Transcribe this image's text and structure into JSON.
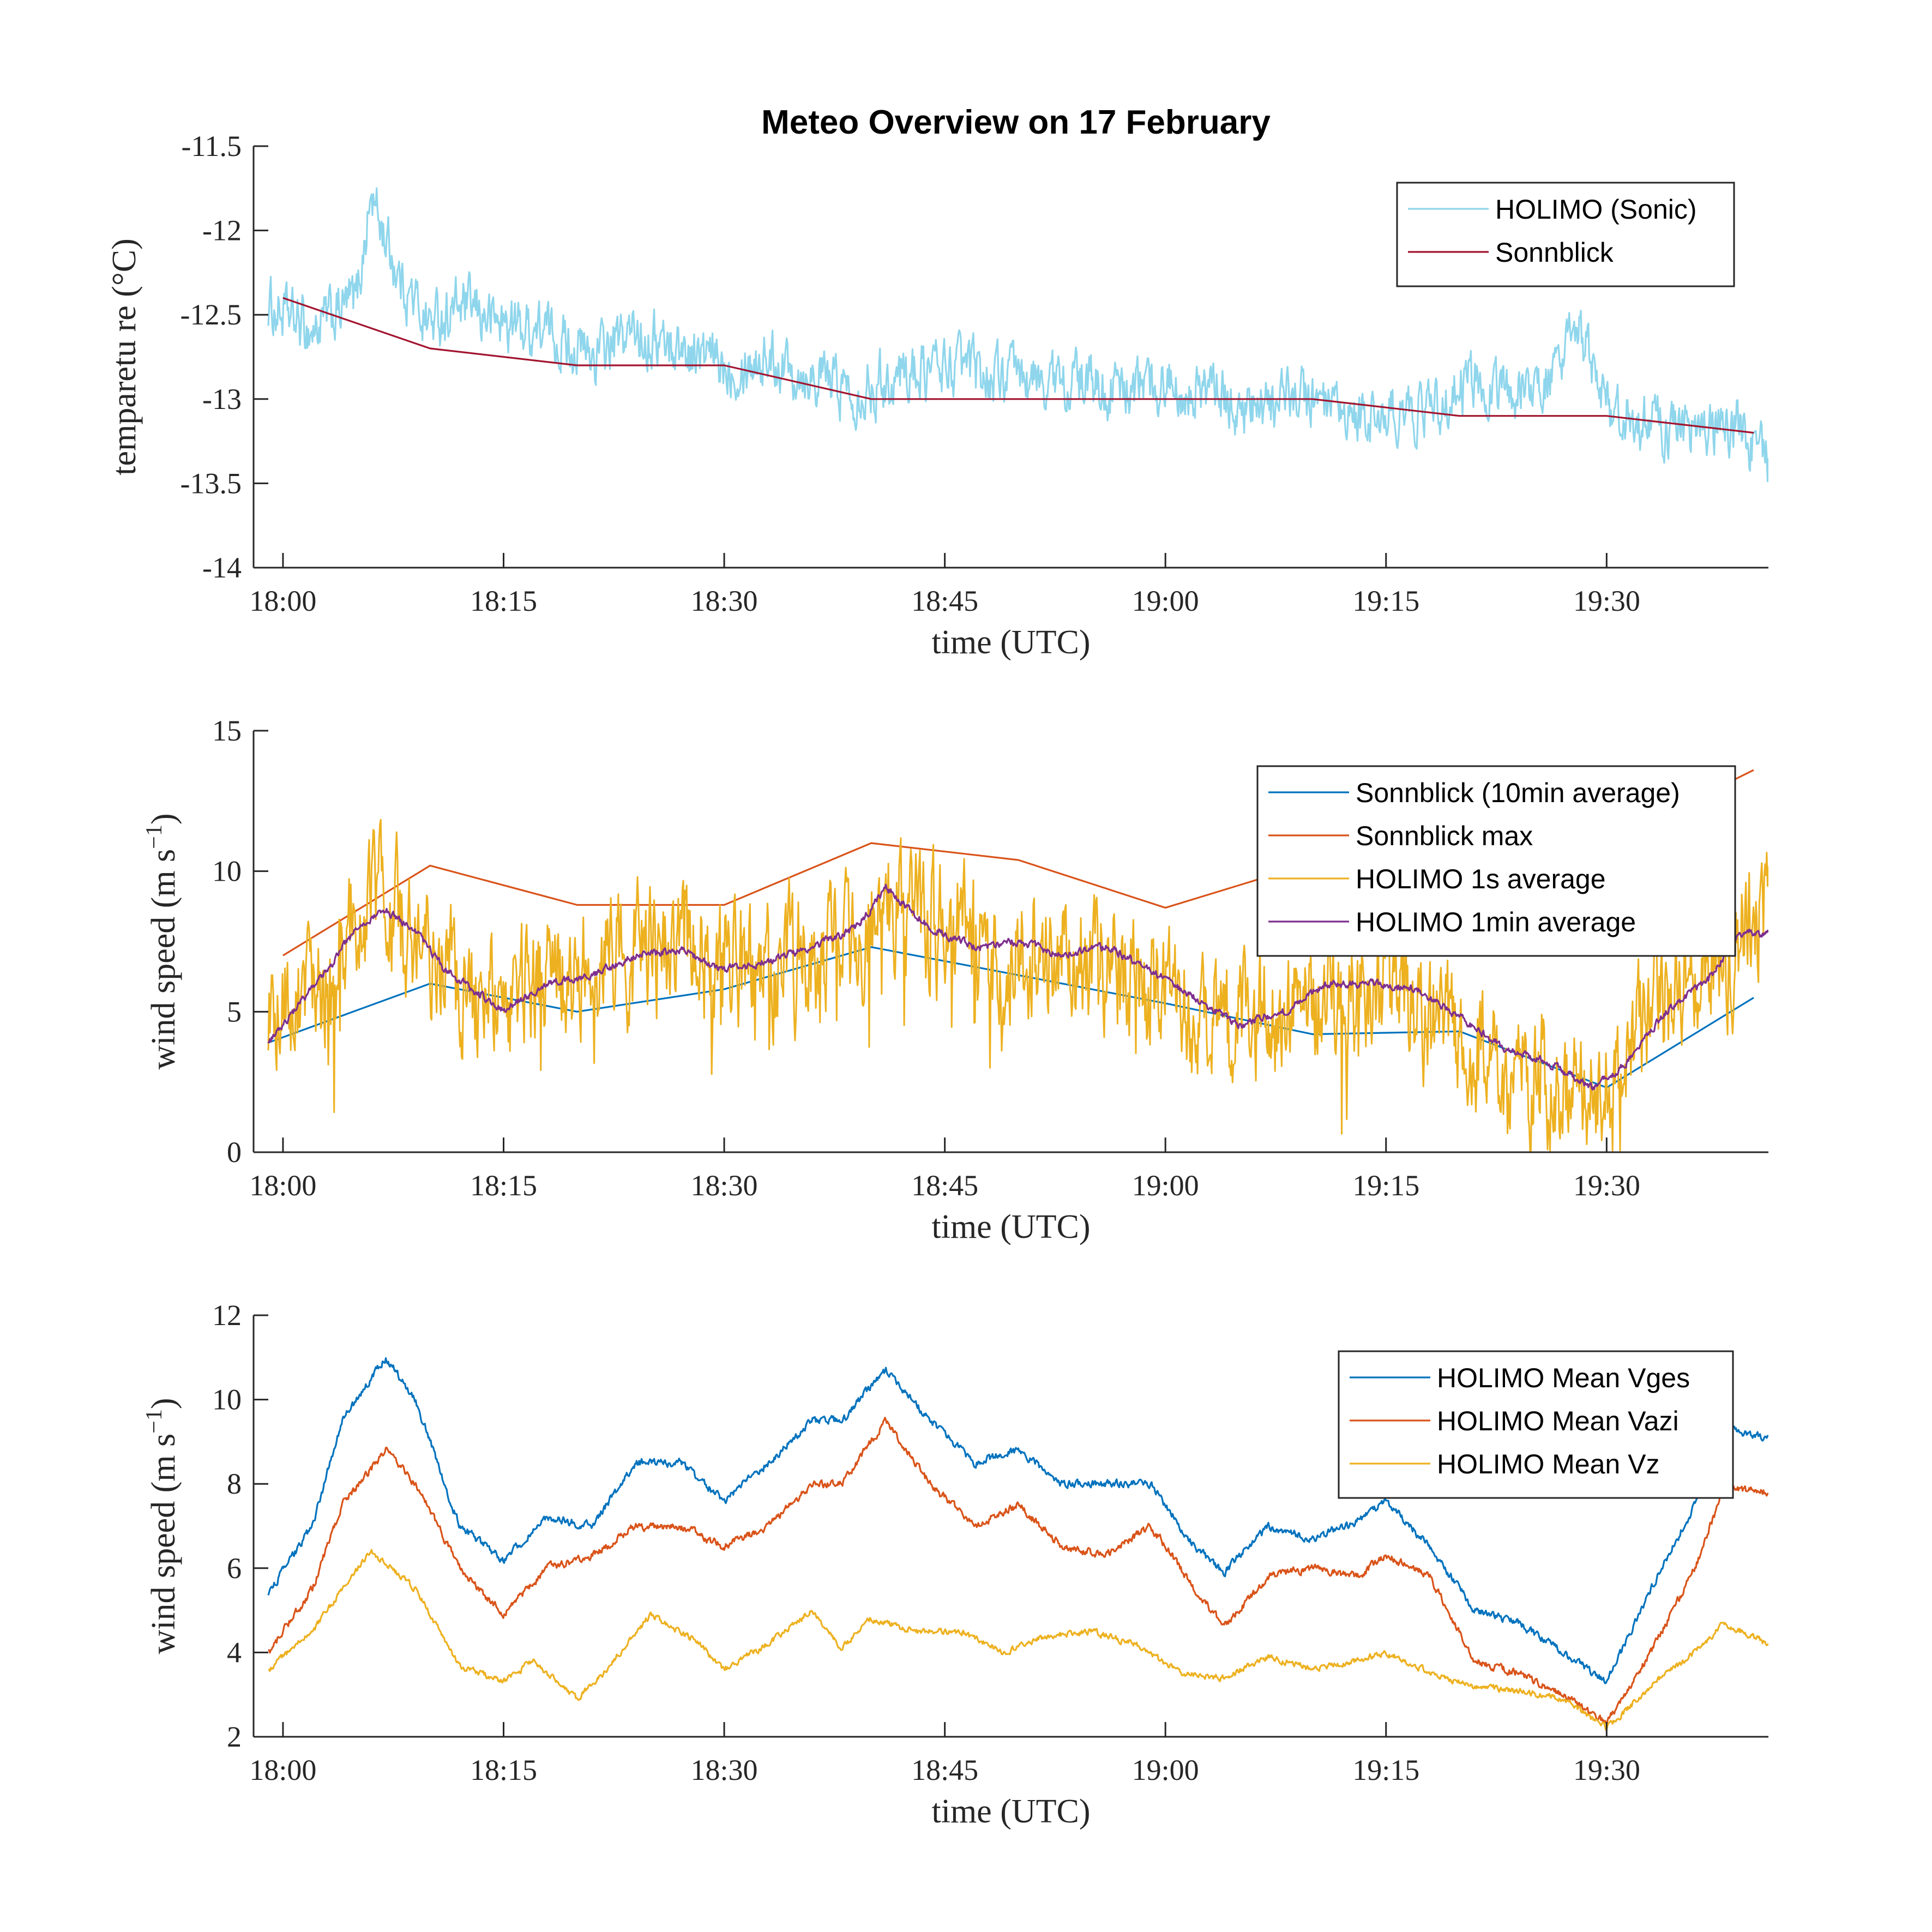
{
  "figure": {
    "title": "Meteo Overview on 17 February"
  },
  "chart_data": [
    {
      "type": "line",
      "title": "Meteo Overview on 17 February",
      "xlabel": "time (UTC)",
      "ylabel": "temparetu re (°C)",
      "ylabel_text": "temparetu re (°C)",
      "ylim": [
        -14,
        -11.5
      ],
      "xlim": [
        "17:58",
        "19:41"
      ],
      "x_ticks": [
        "18:00",
        "18:15",
        "18:30",
        "18:45",
        "19:00",
        "19:15",
        "19:30"
      ],
      "y_ticks": [
        "-14",
        "-13.5",
        "-13",
        "-12.5",
        "-12",
        "-11.5"
      ],
      "y_tick_values": [
        -14,
        -13.5,
        -13,
        -12.5,
        -12,
        -11.5
      ],
      "legend_position": "top-right",
      "series": [
        {
          "name": "HOLIMO (Sonic)",
          "color": "#8fd6ec",
          "noise": 0.18,
          "x": [
            "17:59",
            "18:02",
            "18:05",
            "18:06",
            "18:08",
            "18:10",
            "18:12",
            "18:15",
            "18:18",
            "18:21",
            "18:24",
            "18:27",
            "18:30",
            "18:33",
            "18:36",
            "18:39",
            "18:42",
            "18:45",
            "18:48",
            "18:51",
            "18:54",
            "18:57",
            "19:00",
            "19:03",
            "19:06",
            "19:09",
            "19:12",
            "19:15",
            "19:18",
            "19:21",
            "19:24",
            "19:27",
            "19:28",
            "19:30",
            "19:33",
            "19:36",
            "19:39",
            "19:41"
          ],
          "values": [
            -12.45,
            -12.6,
            -12.4,
            -11.8,
            -12.3,
            -12.55,
            -12.45,
            -12.55,
            -12.6,
            -12.75,
            -12.6,
            -12.7,
            -12.8,
            -12.75,
            -12.85,
            -12.95,
            -12.85,
            -12.8,
            -12.85,
            -12.9,
            -12.9,
            -12.95,
            -12.9,
            -12.95,
            -13.1,
            -12.95,
            -13.15,
            -13.1,
            -13.05,
            -12.9,
            -12.95,
            -12.85,
            -12.55,
            -13.05,
            -13.15,
            -13.2,
            -13.15,
            -13.4
          ]
        },
        {
          "name": "Sonnblick",
          "color": "#a2142f",
          "noise": 0,
          "x": [
            "18:00",
            "18:10",
            "18:20",
            "18:30",
            "18:40",
            "18:50",
            "19:00",
            "19:10",
            "19:20",
            "19:30",
            "19:40"
          ],
          "values": [
            -12.4,
            -12.7,
            -12.8,
            -12.8,
            -13.0,
            -13.0,
            -13.0,
            -13.0,
            -13.1,
            -13.1,
            -13.2
          ]
        }
      ]
    },
    {
      "type": "line",
      "xlabel": "time (UTC)",
      "ylabel": "wind speed (m s^-1)",
      "ylabel_text": "wind speed (m s",
      "ylabel_exp": "−1",
      "ylim": [
        0,
        15
      ],
      "xlim": [
        "17:58",
        "19:41"
      ],
      "x_ticks": [
        "18:00",
        "18:15",
        "18:30",
        "18:45",
        "19:00",
        "19:15",
        "19:30"
      ],
      "y_ticks": [
        "0",
        "5",
        "10",
        "15"
      ],
      "y_tick_values": [
        0,
        5,
        10,
        15
      ],
      "legend_position": "top-right",
      "series": [
        {
          "name": "Sonnblick (10min average)",
          "color": "#0072bd",
          "noise": 0,
          "x": [
            "17:59",
            "18:10",
            "18:20",
            "18:30",
            "18:40",
            "18:50",
            "19:00",
            "19:10",
            "19:20",
            "19:30",
            "19:40"
          ],
          "values": [
            3.9,
            6.0,
            5.0,
            5.8,
            7.3,
            6.3,
            5.3,
            4.2,
            4.3,
            2.3,
            5.5
          ]
        },
        {
          "name": "Sonnblick max",
          "color": "#d95319",
          "noise": 0,
          "x": [
            "18:00",
            "18:10",
            "18:20",
            "18:30",
            "18:40",
            "18:50",
            "19:00",
            "19:10",
            "19:20",
            "19:30",
            "19:40"
          ],
          "values": [
            7.0,
            10.2,
            8.8,
            8.8,
            11.0,
            10.4,
            8.7,
            10.3,
            10.2,
            11.0,
            13.6
          ]
        },
        {
          "name": "HOLIMO 1s average",
          "color": "#edb120",
          "noise": 2.4,
          "x": [
            "17:59",
            "18:03",
            "18:05",
            "18:07",
            "18:10",
            "18:12",
            "18:15",
            "18:18",
            "18:21",
            "18:24",
            "18:27",
            "18:30",
            "18:33",
            "18:36",
            "18:39",
            "18:41",
            "18:44",
            "18:47",
            "18:50",
            "18:53",
            "18:56",
            "18:59",
            "19:02",
            "19:05",
            "19:08",
            "19:11",
            "19:14",
            "19:17",
            "19:20",
            "19:23",
            "19:26",
            "19:29",
            "19:31",
            "19:34",
            "19:37",
            "19:39",
            "19:41"
          ],
          "values": [
            4.5,
            6.5,
            8.5,
            8.5,
            7.5,
            6.0,
            5.0,
            6.5,
            6.5,
            7.0,
            7.0,
            6.5,
            6.5,
            7.0,
            7.5,
            9.0,
            8.0,
            7.5,
            7.0,
            7.0,
            6.5,
            6.0,
            5.0,
            4.5,
            5.0,
            5.5,
            5.5,
            5.0,
            4.0,
            3.0,
            2.5,
            2.0,
            3.5,
            5.5,
            6.5,
            7.5,
            8.5
          ]
        },
        {
          "name": "HOLIMO 1min average",
          "color": "#7e2f8e",
          "noise": 0.15,
          "x": [
            "17:59",
            "18:03",
            "18:05",
            "18:07",
            "18:09",
            "18:11",
            "18:15",
            "18:18",
            "18:21",
            "18:24",
            "18:27",
            "18:30",
            "18:33",
            "18:36",
            "18:39",
            "18:41",
            "18:44",
            "18:47",
            "18:50",
            "18:53",
            "18:56",
            "18:59",
            "19:02",
            "19:05",
            "19:08",
            "19:11",
            "19:14",
            "19:17",
            "19:20",
            "19:23",
            "19:26",
            "19:29",
            "19:31",
            "19:34",
            "19:37",
            "19:39",
            "19:41"
          ],
          "values": [
            3.9,
            6.5,
            8.0,
            8.6,
            7.9,
            6.5,
            5.0,
            6.0,
            6.3,
            7.0,
            7.2,
            6.5,
            6.8,
            7.3,
            8.0,
            9.4,
            8.0,
            7.3,
            7.5,
            7.0,
            7.3,
            6.5,
            5.5,
            4.5,
            5.0,
            6.0,
            6.0,
            5.8,
            4.8,
            3.7,
            3.2,
            2.3,
            3.0,
            5.0,
            6.2,
            7.8,
            7.8
          ]
        }
      ]
    },
    {
      "type": "line",
      "xlabel": "time (UTC)",
      "ylabel": "wind speed (m s^-1)",
      "ylabel_text": "wind speed (m s",
      "ylabel_exp": "−1",
      "ylim": [
        2,
        12
      ],
      "xlim": [
        "17:58",
        "19:41"
      ],
      "x_ticks": [
        "18:00",
        "18:15",
        "18:30",
        "18:45",
        "19:00",
        "19:15",
        "19:30"
      ],
      "y_ticks": [
        "2",
        "4",
        "6",
        "8",
        "10",
        "12"
      ],
      "y_tick_values": [
        2,
        4,
        6,
        8,
        10,
        12
      ],
      "legend_position": "top-right",
      "series": [
        {
          "name": "HOLIMO Mean Vges",
          "color": "#0072bd",
          "noise": 0.1,
          "x": [
            "17:59",
            "18:02",
            "18:04",
            "18:07",
            "18:09",
            "18:12",
            "18:15",
            "18:18",
            "18:21",
            "18:24",
            "18:27",
            "18:30",
            "18:33",
            "18:36",
            "18:38",
            "18:41",
            "18:44",
            "18:47",
            "18:50",
            "18:53",
            "18:56",
            "18:59",
            "19:02",
            "19:04",
            "19:07",
            "19:10",
            "19:13",
            "19:15",
            "19:18",
            "19:21",
            "19:24",
            "19:27",
            "19:30",
            "19:33",
            "19:36",
            "19:38",
            "19:41"
          ],
          "values": [
            5.4,
            7.0,
            9.5,
            11.0,
            10.0,
            7.0,
            6.2,
            7.2,
            7.0,
            8.5,
            8.5,
            7.6,
            8.5,
            9.5,
            9.5,
            10.7,
            9.5,
            8.5,
            8.8,
            8.0,
            8.0,
            8.0,
            6.5,
            5.9,
            7.0,
            6.7,
            7.1,
            7.6,
            6.5,
            5.0,
            4.7,
            4.0,
            3.3,
            5.5,
            7.5,
            9.3,
            9.1
          ]
        },
        {
          "name": "HOLIMO Mean Vazi",
          "color": "#d95319",
          "noise": 0.1,
          "x": [
            "17:59",
            "18:02",
            "18:04",
            "18:07",
            "18:09",
            "18:12",
            "18:15",
            "18:18",
            "18:21",
            "18:24",
            "18:27",
            "18:30",
            "18:33",
            "18:36",
            "18:38",
            "18:41",
            "18:44",
            "18:47",
            "18:50",
            "18:53",
            "18:56",
            "18:59",
            "19:02",
            "19:04",
            "19:07",
            "19:10",
            "19:13",
            "19:15",
            "19:18",
            "19:21",
            "19:24",
            "19:27",
            "19:30",
            "19:33",
            "19:36",
            "19:38",
            "19:41"
          ],
          "values": [
            4.0,
            5.5,
            7.5,
            8.8,
            8.0,
            6.0,
            4.9,
            6.0,
            6.3,
            7.0,
            7.0,
            6.5,
            7.0,
            8.0,
            8.0,
            9.5,
            8.0,
            7.0,
            7.5,
            6.5,
            6.3,
            7.0,
            5.5,
            4.6,
            5.8,
            6.0,
            5.8,
            6.3,
            5.8,
            3.8,
            3.5,
            3.0,
            2.3,
            4.0,
            6.0,
            7.9,
            7.8
          ]
        },
        {
          "name": "HOLIMO Mean Vz",
          "color": "#edb120",
          "noise": 0.08,
          "x": [
            "17:59",
            "18:02",
            "18:04",
            "18:06",
            "18:09",
            "18:12",
            "18:15",
            "18:17",
            "18:20",
            "18:22",
            "18:25",
            "18:28",
            "18:30",
            "18:33",
            "18:36",
            "18:38",
            "18:40",
            "18:43",
            "18:46",
            "18:49",
            "18:52",
            "18:55",
            "18:58",
            "19:01",
            "19:04",
            "19:07",
            "19:10",
            "19:13",
            "19:15",
            "19:18",
            "19:21",
            "19:24",
            "19:27",
            "19:30",
            "19:33",
            "19:36",
            "19:38",
            "19:41"
          ],
          "values": [
            3.6,
            4.5,
            5.5,
            6.4,
            5.5,
            3.7,
            3.3,
            3.8,
            2.9,
            3.6,
            4.9,
            4.3,
            3.6,
            4.2,
            5.0,
            4.1,
            4.8,
            4.5,
            4.5,
            4.0,
            4.4,
            4.5,
            4.2,
            3.5,
            3.4,
            3.9,
            3.6,
            3.8,
            4.0,
            3.5,
            3.2,
            3.1,
            2.9,
            2.2,
            3.2,
            4.0,
            4.7,
            4.2
          ]
        }
      ]
    }
  ]
}
